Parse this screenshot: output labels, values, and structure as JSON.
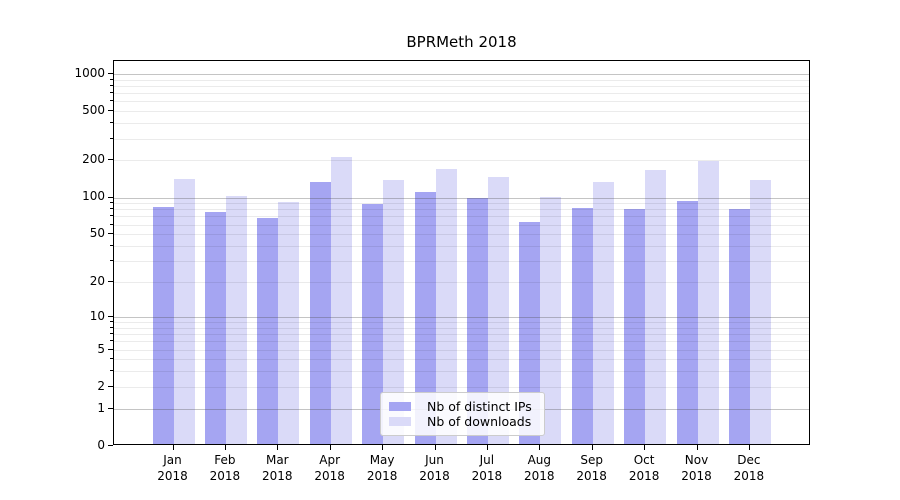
{
  "colors": {
    "ips_bar": "#a5a5f2",
    "downloads_bar": "#dadaf8",
    "grid_major": "#c2c2c2",
    "grid_minor": "#eaeaea",
    "spine": "#000000"
  },
  "chart_data": {
    "type": "bar",
    "title": "BPRMeth 2018",
    "xlabel": "",
    "ylabel": "",
    "year_label": "2018",
    "scale": "log10(1+value)",
    "categories": [
      "Jan",
      "Feb",
      "Mar",
      "Apr",
      "May",
      "Jun",
      "Jul",
      "Aug",
      "Sep",
      "Oct",
      "Nov",
      "Dec"
    ],
    "series": [
      {
        "name": "Nb of distinct IPs",
        "values": [
          80,
          73,
          65,
          130,
          85,
          106,
          96,
          61,
          79,
          78,
          90,
          77
        ]
      },
      {
        "name": "Nb of downloads",
        "values": [
          135,
          100,
          88,
          207,
          133,
          164,
          141,
          97,
          128,
          162,
          189,
          134
        ]
      }
    ],
    "yticks": [
      {
        "v": 1000,
        "label": "1000"
      },
      {
        "v": 500,
        "label": "500"
      },
      {
        "v": 200,
        "label": "200"
      },
      {
        "v": 100,
        "label": "100"
      },
      {
        "v": 50,
        "label": "50"
      },
      {
        "v": 20,
        "label": "20"
      },
      {
        "v": 10,
        "label": "10"
      },
      {
        "v": 5,
        "label": "5"
      },
      {
        "v": 2,
        "label": "2"
      },
      {
        "v": 1,
        "label": "1"
      },
      {
        "v": 0,
        "label": "0"
      }
    ],
    "grid_major_values": [
      1,
      10,
      100,
      1000
    ],
    "grid_minor_values": [
      2,
      3,
      4,
      5,
      6,
      7,
      8,
      9,
      20,
      30,
      40,
      50,
      60,
      70,
      80,
      90,
      200,
      300,
      400,
      500,
      600,
      700,
      800,
      900
    ],
    "ylim": [
      0,
      1265
    ],
    "grid": "on",
    "legend_position": "lower-center"
  }
}
